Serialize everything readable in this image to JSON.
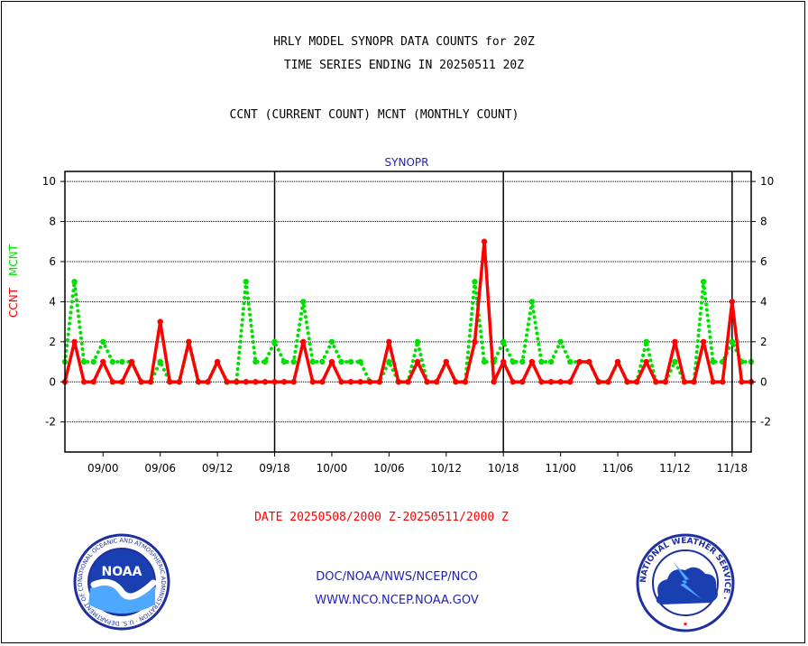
{
  "titles": {
    "line1": "HRLY MODEL SYNOPR DATA COUNTS for 20Z",
    "line2": "TIME SERIES ENDING IN 20250511 20Z",
    "line3": "CCNT (CURRENT COUNT) MCNT (MONTHLY COUNT)"
  },
  "date_range": "DATE 20250508/2000 Z-20250511/2000 Z",
  "footer": {
    "org": "DOC/NOAA/NWS/NCEP/NCO",
    "url": "WWW.NCO.NCEP.NOAA.GOV"
  },
  "logos": {
    "noaa_text": "NOAA",
    "noaa_ring": "NATIONAL OCEANIC AND ATMOSPHERIC ADMINISTRATION · U.S. DEPARTMENT OF COMMERCE ·",
    "nws_ring": "NATIONAL WEATHER SERVICE ·"
  },
  "chart_data": {
    "type": "line",
    "title": "SYNOPR",
    "ylabel_ccnt": "CCNT",
    "ylabel_mcnt": "MCNT",
    "ylim": [
      -3.5,
      10.5
    ],
    "yticks": [
      -2,
      0,
      2,
      4,
      6,
      8,
      10
    ],
    "grid": true,
    "x_tick_labels": [
      "09/00",
      "09/06",
      "09/12",
      "09/18",
      "10/00",
      "10/06",
      "10/12",
      "10/18",
      "11/00",
      "11/06",
      "11/12",
      "11/18"
    ],
    "x_tick_hours": [
      4,
      10,
      16,
      22,
      28,
      34,
      40,
      46,
      52,
      58,
      64,
      70
    ],
    "day_boundaries": [
      22,
      46,
      70
    ],
    "x_hours_range": [
      0,
      72
    ],
    "colors": {
      "ccnt": "#ff0000",
      "mcnt": "#00e000"
    },
    "series": [
      {
        "name": "CCNT",
        "style": "solid",
        "values": [
          0,
          2,
          0,
          0,
          1,
          0,
          0,
          1,
          0,
          0,
          3,
          0,
          0,
          2,
          0,
          0,
          1,
          0,
          0,
          0,
          0,
          0,
          0,
          0,
          0,
          2,
          0,
          0,
          1,
          0,
          0,
          0,
          0,
          0,
          2,
          0,
          0,
          1,
          0,
          0,
          1,
          0,
          0,
          2,
          7,
          0,
          1,
          0,
          0,
          1,
          0,
          0,
          0,
          0,
          1,
          1,
          0,
          0,
          1,
          0,
          0,
          1,
          0,
          0,
          2,
          0,
          0,
          2,
          0,
          0,
          4,
          0,
          0
        ]
      },
      {
        "name": "MCNT",
        "style": "dotted",
        "values": [
          1,
          5,
          1,
          1,
          2,
          1,
          1,
          1,
          0,
          0,
          1,
          0,
          0,
          2,
          0,
          0,
          1,
          0,
          0,
          5,
          1,
          1,
          2,
          1,
          1,
          4,
          1,
          1,
          2,
          1,
          1,
          1,
          0,
          0,
          1,
          0,
          0,
          2,
          0,
          0,
          1,
          0,
          0,
          5,
          1,
          1,
          2,
          1,
          1,
          4,
          1,
          1,
          2,
          1,
          1,
          1,
          0,
          0,
          1,
          0,
          0,
          2,
          0,
          0,
          1,
          0,
          0,
          5,
          1,
          1,
          2,
          1,
          1
        ]
      }
    ]
  }
}
